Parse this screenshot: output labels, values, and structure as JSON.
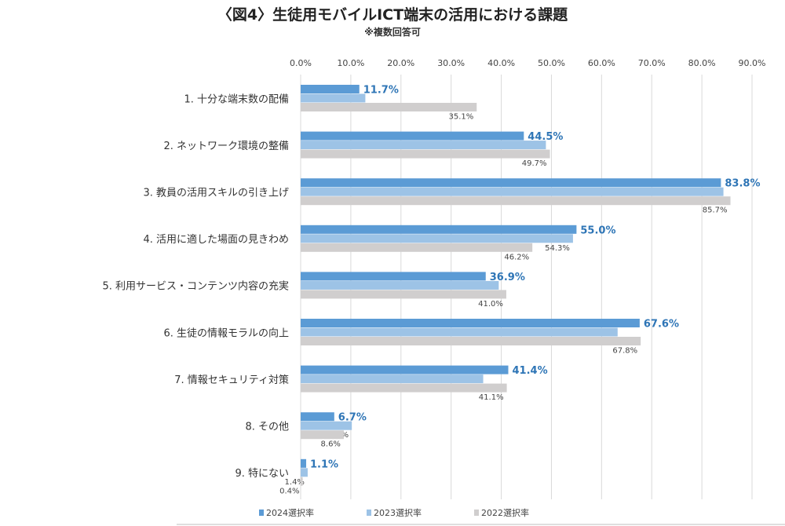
{
  "chart_data": {
    "type": "bar",
    "orientation": "horizontal",
    "title": "〈図4〉生徒用モバイルICT端末の活用における課題",
    "subtitle": "※複数回答可",
    "categories": [
      "1. 十分な端末数の配備",
      "2. ネットワーク環境の整備",
      "3. 教員の活用スキルの引き上げ",
      "4. 活用に適した場面の見きわめ",
      "5. 利用サービス・コンテンツ内容の充実",
      "6. 生徒の情報モラルの向上",
      "7. 情報セキュリティ対策",
      "8. その他",
      "9. 特にない"
    ],
    "series": [
      {
        "name": "2024選択率",
        "color": "#5b9bd5",
        "label_color": "#2e75b6",
        "values": [
          11.7,
          44.5,
          83.8,
          55.0,
          36.9,
          67.6,
          41.4,
          6.7,
          1.1
        ]
      },
      {
        "name": "2023選択率",
        "color": "#9dc3e6",
        "label_color": "#444444",
        "values": [
          12.9,
          48.9,
          84.3,
          54.3,
          39.5,
          63.2,
          36.4,
          10.2,
          1.4
        ]
      },
      {
        "name": "2022選択率",
        "color": "#d0cece",
        "label_color": "#444444",
        "values": [
          35.1,
          49.7,
          85.7,
          46.2,
          41.0,
          67.8,
          41.1,
          8.6,
          0.4
        ]
      }
    ],
    "xlim": [
      0,
      90
    ],
    "xticks": [
      "0.0%",
      "10.0%",
      "20.0%",
      "30.0%",
      "40.0%",
      "50.0%",
      "60.0%",
      "70.0%",
      "80.0%",
      "90.0%"
    ],
    "axis_position": "top",
    "grid": true,
    "legend": "bottom-left"
  }
}
